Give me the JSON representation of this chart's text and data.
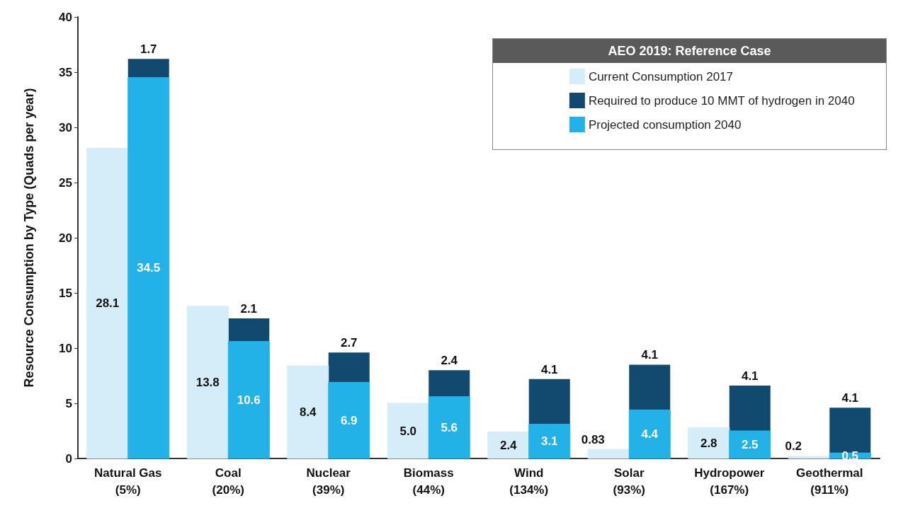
{
  "chart_data": {
    "type": "bar",
    "ylabel": "Resource Consumption by Type (Quads per year)",
    "legend_title": "AEO 2019: Reference Case",
    "categories": [
      "Natural Gas\n(5%)",
      "Coal\n(20%)",
      "Nuclear\n(39%)",
      "Biomass\n(44%)",
      "Wind\n(134%)",
      "Solar\n(93%)",
      "Hydropower\n(167%)",
      "Geothermal\n(911%)"
    ],
    "series": [
      {
        "name": "Current Consumption 2017",
        "color": "#d5edf8",
        "values": [
          28.1,
          13.8,
          8.4,
          5.0,
          2.4,
          0.83,
          2.8,
          0.2
        ],
        "value_labels": [
          "28.1",
          "13.8",
          "8.4",
          "5.0",
          "2.4",
          "0.83",
          "2.8",
          "0.2"
        ]
      },
      {
        "name": "Required to produce 10 MMT of hydrogen in 2040",
        "color": "#114a6e",
        "values": [
          1.7,
          2.1,
          2.7,
          2.4,
          4.1,
          4.1,
          4.1,
          4.1
        ],
        "base": [
          34.5,
          10.6,
          6.9,
          5.6,
          3.1,
          4.4,
          2.5,
          0.5
        ],
        "value_labels": [
          "1.7",
          "2.1",
          "2.7",
          "2.4",
          "4.1",
          "4.1",
          "4.1",
          "4.1"
        ]
      },
      {
        "name": "Projected consumption 2040",
        "color": "#22b2e7",
        "values": [
          34.5,
          10.6,
          6.9,
          5.6,
          3.1,
          4.4,
          2.5,
          0.5
        ],
        "value_labels": [
          "34.5",
          "10.6",
          "6.9",
          "5.6",
          "3.1",
          "4.4",
          "2.5",
          "0.5"
        ]
      }
    ],
    "ylim": [
      0,
      40
    ],
    "yticks": [
      0,
      5,
      10,
      15,
      20,
      25,
      30,
      35,
      40
    ],
    "grid": false,
    "legend": "top right"
  }
}
